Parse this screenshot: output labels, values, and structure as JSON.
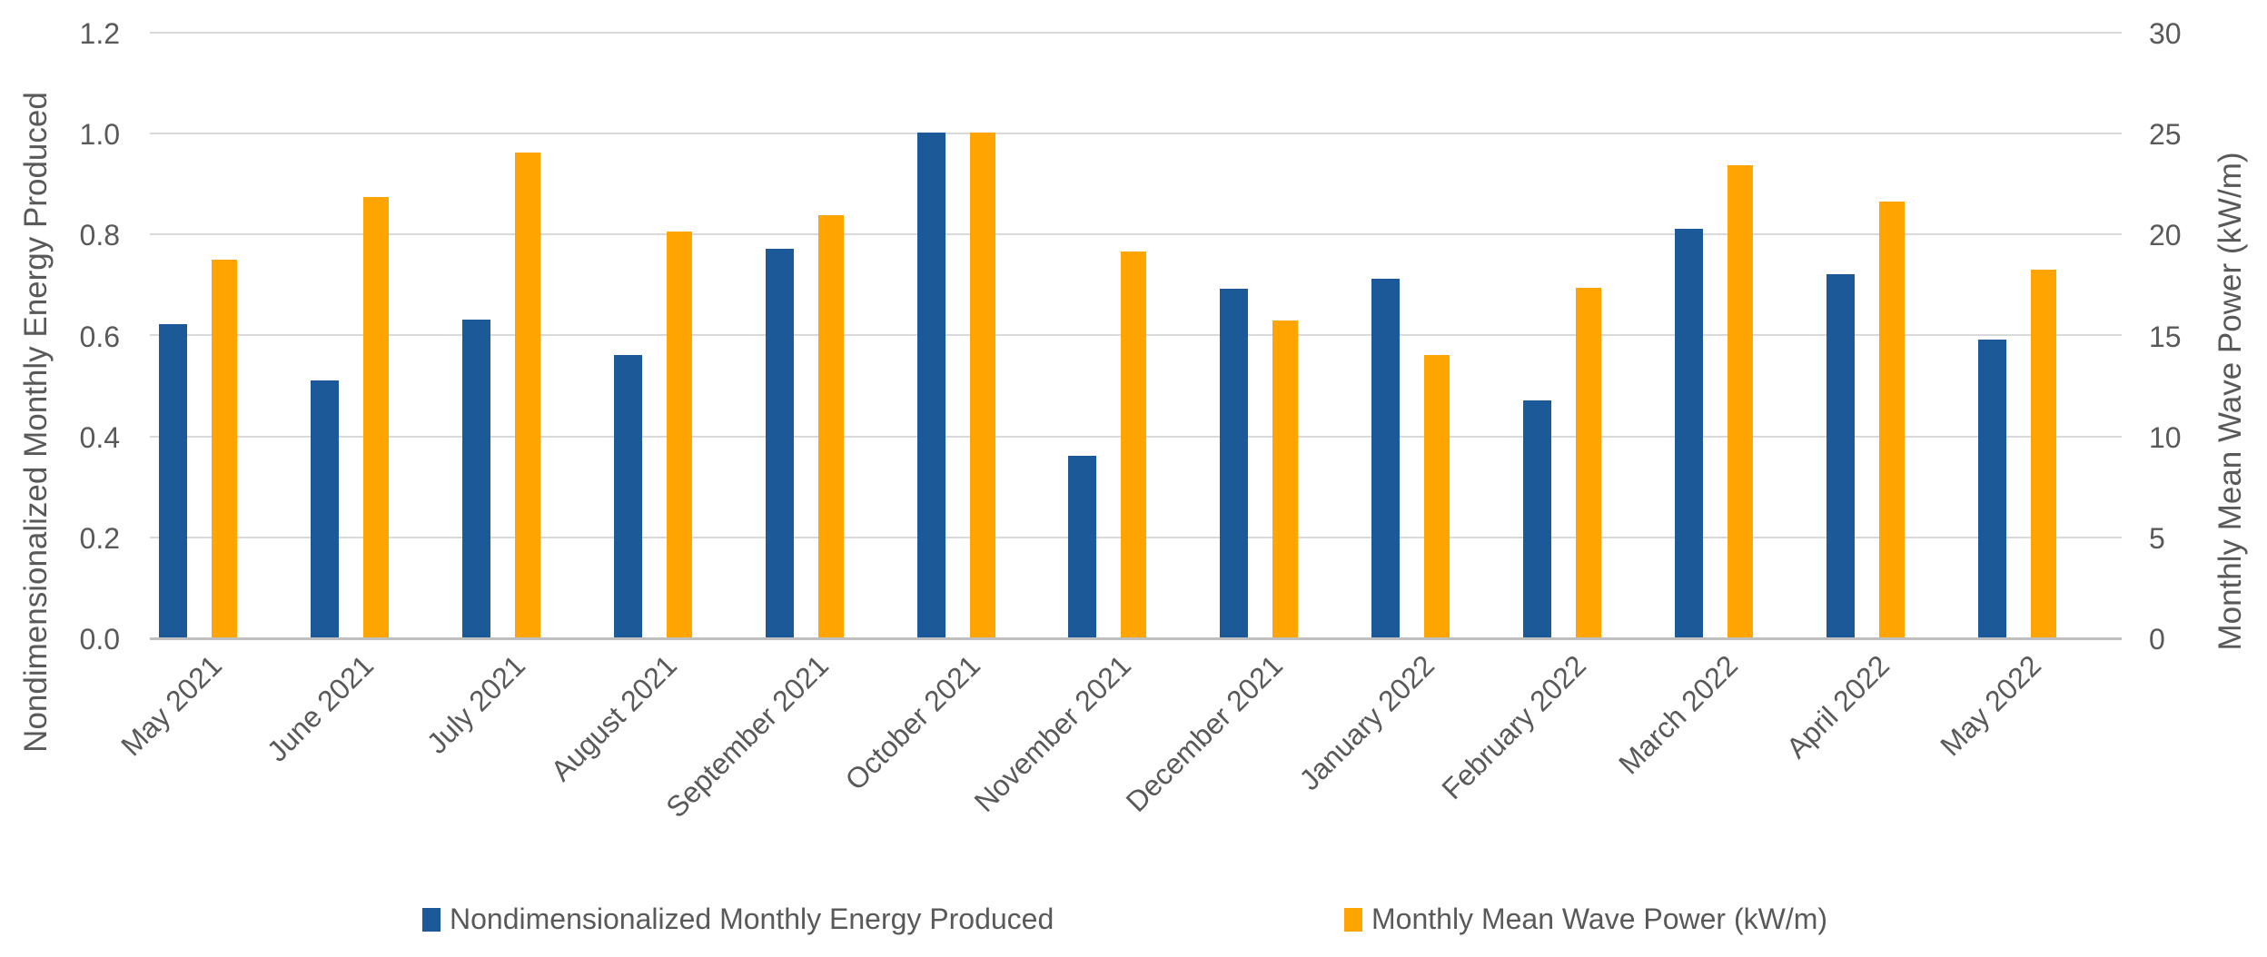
{
  "chart_data": {
    "type": "bar",
    "title": "",
    "categories": [
      "May 2021",
      "June 2021",
      "July 2021",
      "August 2021",
      "September 2021",
      "October 2021",
      "November 2021",
      "December 2021",
      "January 2022",
      "February 2022",
      "March 2022",
      "April 2022",
      "May 2022"
    ],
    "series": [
      {
        "name": "Nondimensionalized Monthly Energy Produced",
        "axis": "left",
        "color": "#1C5998",
        "values": [
          0.62,
          0.51,
          0.63,
          0.56,
          0.77,
          1.0,
          0.36,
          0.69,
          0.71,
          0.47,
          0.81,
          0.72,
          0.59
        ]
      },
      {
        "name": "Monthly Mean Wave Power (kW/m)",
        "axis": "right",
        "color": "#FFA400",
        "values": [
          18.7,
          21.8,
          24.0,
          20.1,
          20.9,
          25.0,
          19.1,
          15.7,
          14.0,
          17.3,
          23.4,
          21.6,
          18.2
        ]
      }
    ],
    "left_axis": {
      "label": "Nondimensionalized Monthly Energy Produced",
      "min": 0.0,
      "max": 1.2,
      "step": 0.2,
      "ticks": [
        "1.2",
        "1.0",
        "0.8",
        "0.6",
        "0.4",
        "0.2",
        "0.0"
      ]
    },
    "right_axis": {
      "label": "Monthly Mean Wave Power (kW/m)",
      "min": 0,
      "max": 30,
      "step": 5,
      "ticks": [
        "30",
        "25",
        "20",
        "15",
        "10",
        "5",
        "0"
      ]
    },
    "legend": {
      "position": "bottom",
      "entries": [
        "Nondimensionalized Monthly Energy Produced",
        "Monthly Mean Wave Power (kW/m)"
      ]
    },
    "grid": true,
    "colors": {
      "gridline": "#D9D9D9",
      "axis_line": "#BFBFBF",
      "text": "#595959"
    }
  }
}
